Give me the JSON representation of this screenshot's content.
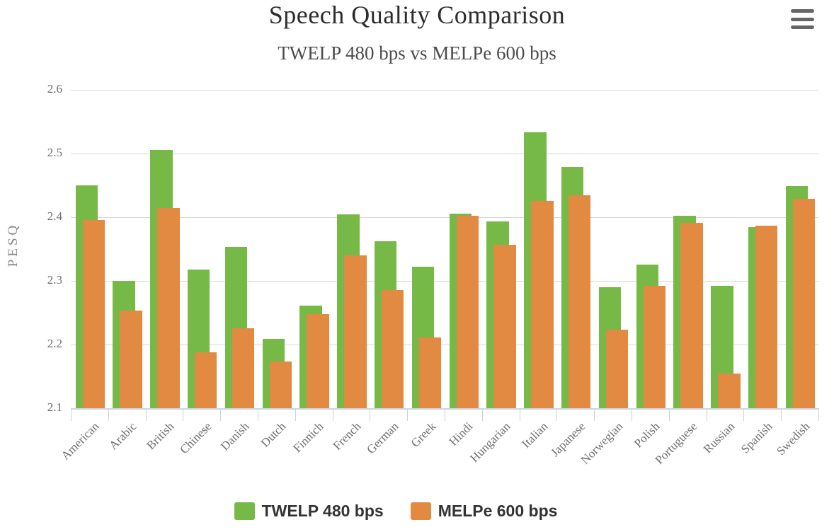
{
  "header": {
    "title": "Speech Quality Comparison",
    "subtitle": "TWELP 480 bps vs MELPe 600 bps"
  },
  "menu": {
    "icon": "hamburger-icon"
  },
  "chart_data": {
    "type": "bar",
    "title": "Speech Quality Comparison",
    "subtitle": "TWELP 480 bps vs MELPe 600 bps",
    "ylabel": "PESQ",
    "xlabel": "",
    "ylim": [
      2.1,
      2.6
    ],
    "ytick_labels": [
      "2.6",
      "2.5",
      "2.4",
      "2.3",
      "2.2",
      "2.1"
    ],
    "yticks": [
      2.6,
      2.5,
      2.4,
      2.3,
      2.2,
      2.1
    ],
    "grid": true,
    "legend_position": "bottom",
    "categories": [
      "American",
      "Arabic",
      "British",
      "Chinese",
      "Danish",
      "Dutch",
      "Finnich",
      "French",
      "German",
      "Greek",
      "Hindi",
      "Hungarian",
      "Italian",
      "Japanese",
      "Norwegian",
      "Polish",
      "Portuguese",
      "Russian",
      "Spanish",
      "Swedish"
    ],
    "series": [
      {
        "name": "TWELP 480 bps",
        "color": "#76b947",
        "values": [
          2.45,
          2.3,
          2.506,
          2.318,
          2.353,
          2.209,
          2.261,
          2.405,
          2.362,
          2.322,
          2.406,
          2.393,
          2.533,
          2.479,
          2.29,
          2.326,
          2.402,
          2.292,
          2.384,
          2.449
        ]
      },
      {
        "name": "MELPe 600 bps",
        "color": "#e28a42",
        "values": [
          2.396,
          2.253,
          2.414,
          2.188,
          2.226,
          2.173,
          2.248,
          2.34,
          2.286,
          2.211,
          2.402,
          2.357,
          2.426,
          2.435,
          2.223,
          2.292,
          2.391,
          2.154,
          2.387,
          2.429
        ]
      }
    ],
    "colors": {
      "gridline": "#d8d8d8",
      "axis_line": "#ccd6e0",
      "axis_text": "#6f6f6f",
      "title_text": "#2d2d2d",
      "subtitle_text": "#4c4c4c",
      "legend_text": "#333333",
      "menu_icon": "#666666"
    }
  }
}
